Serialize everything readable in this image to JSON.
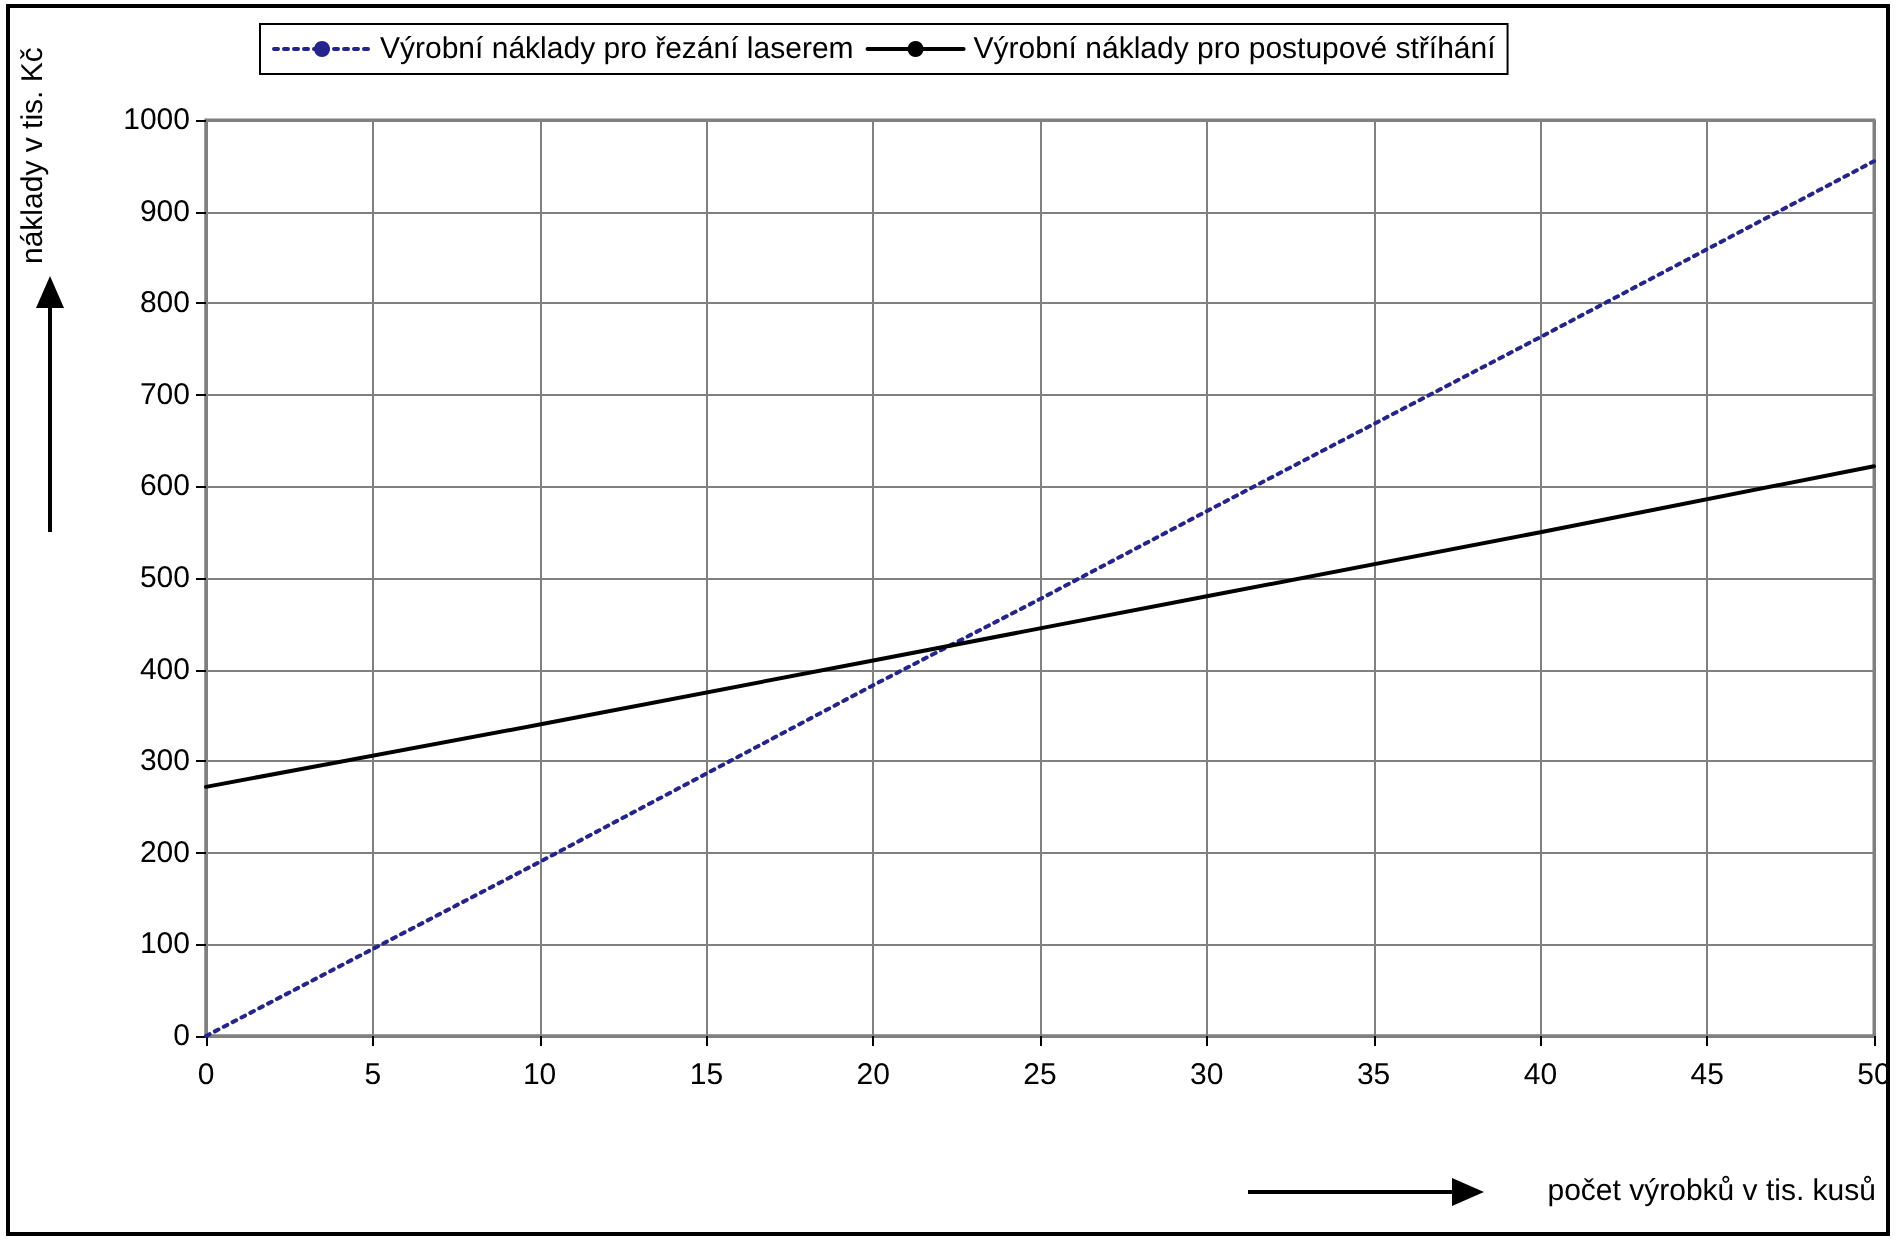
{
  "chart_data": {
    "type": "line",
    "xlabel": "počet výrobků v tis. kusů",
    "ylabel": "náklady v tis. Kč",
    "x": [
      0,
      10,
      20,
      25,
      30,
      40,
      50
    ],
    "series": [
      {
        "name": "Výrobní náklady pro řezání laserem",
        "color": "#24248f",
        "line_style": "dotted",
        "values": [
          0,
          190,
          383,
          477,
          573,
          763,
          955
        ]
      },
      {
        "name": "Výrobní náklady pro postupové stříhání",
        "color": "#000000",
        "line_style": "solid",
        "values": [
          272,
          340,
          410,
          445,
          480,
          550,
          622
        ]
      }
    ],
    "xlim": [
      0,
      50
    ],
    "xticks": [
      0,
      5,
      10,
      15,
      20,
      25,
      30,
      35,
      40,
      45,
      50
    ],
    "ylim": [
      0,
      1000
    ],
    "yticks": [
      0,
      100,
      200,
      300,
      400,
      500,
      600,
      700,
      800,
      900,
      1000
    ],
    "grid": true,
    "legend": "top",
    "marker": "none"
  }
}
